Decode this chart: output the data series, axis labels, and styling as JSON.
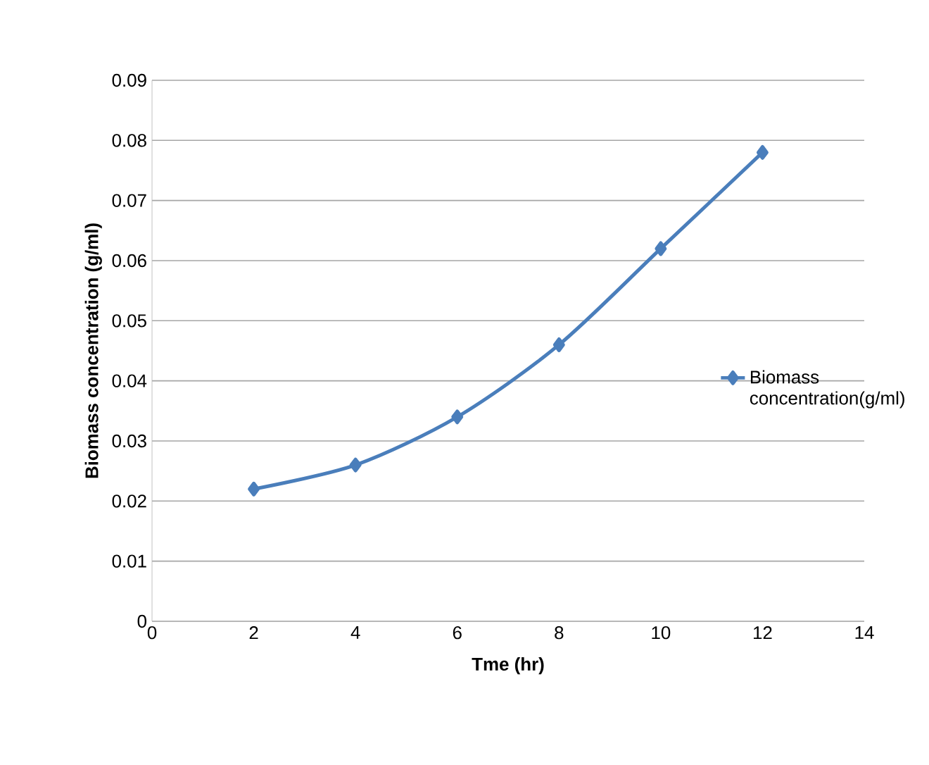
{
  "chart_data": {
    "type": "line",
    "xlabel": "Tme (hr)",
    "ylabel": "Biomass concentration  (g/ml)",
    "x": [
      2,
      4,
      6,
      8,
      10,
      12
    ],
    "series": [
      {
        "name": "Biomass concentration(g/ml)",
        "color": "#4a7ebb",
        "values": [
          0.022,
          0.026,
          0.034,
          0.046,
          0.062,
          0.078
        ]
      }
    ],
    "xlim": [
      0,
      14
    ],
    "xticks": [
      0,
      2,
      4,
      6,
      8,
      10,
      12,
      14
    ],
    "ylim": [
      0,
      0.09
    ],
    "yticks": [
      0,
      0.01,
      0.02,
      0.03,
      0.04,
      0.05,
      0.06,
      0.07,
      0.08,
      0.09
    ],
    "grid": "y",
    "legend": "right",
    "marker": "diamond",
    "line_style": "solid"
  }
}
